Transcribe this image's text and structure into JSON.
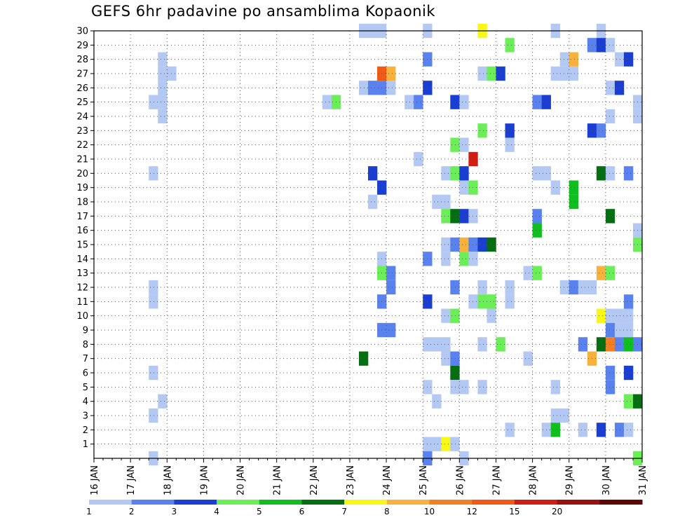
{
  "chart_data": {
    "type": "heatmap",
    "title": "GEFS 6hr padavine po ansamblima Kopaonik",
    "x_tick_labels": [
      "16 JAN",
      "17 JAN",
      "18 JAN",
      "19 JAN",
      "20 JAN",
      "21 JAN",
      "22 JAN",
      "23 JAN",
      "24 JAN",
      "25 JAN",
      "26 JAN",
      "27 JAN",
      "28 JAN",
      "29 JAN",
      "30 JAN",
      "31 JAN"
    ],
    "x_range_days": [
      16,
      31
    ],
    "y_tick_labels": [
      "1",
      "2",
      "3",
      "4",
      "5",
      "6",
      "7",
      "8",
      "9",
      "10",
      "11",
      "12",
      "13",
      "14",
      "15",
      "16",
      "17",
      "18",
      "19",
      "20",
      "21",
      "22",
      "23",
      "24",
      "25",
      "26",
      "27",
      "28",
      "29",
      "30"
    ],
    "y_range": [
      0,
      30
    ],
    "grid": true,
    "legend_placement": "bottom",
    "legend": {
      "labels": [
        "1",
        "2",
        "3",
        "4",
        "5",
        "6",
        "7",
        "8",
        "10",
        "12",
        "15",
        "20"
      ],
      "colors": [
        "#b4c8f4",
        "#5a82ee",
        "#1a3ed2",
        "#6cee58",
        "#10be20",
        "#066e12",
        "#f8f814",
        "#f8b23c",
        "#f08022",
        "#f05a14",
        "#d21e12",
        "#9a1010",
        "#5e0606"
      ]
    },
    "cells_note": "each cell: [day-of-January at start of 6h slot, ensemble member, precipitation class 1-13]",
    "cells": [
      [
        23.25,
        30,
        1
      ],
      [
        23.5,
        30,
        1
      ],
      [
        23.75,
        30,
        1
      ],
      [
        25.0,
        30,
        1
      ],
      [
        26.5,
        30,
        7
      ],
      [
        28.5,
        30,
        1
      ],
      [
        29.75,
        30,
        1
      ],
      [
        27.25,
        29,
        4
      ],
      [
        29.5,
        29,
        2
      ],
      [
        29.75,
        29,
        3
      ],
      [
        30.0,
        29,
        1
      ],
      [
        17.75,
        28,
        1
      ],
      [
        25.0,
        28,
        2
      ],
      [
        28.75,
        28,
        1
      ],
      [
        29.0,
        28,
        8
      ],
      [
        30.25,
        28,
        1
      ],
      [
        30.5,
        28,
        3
      ],
      [
        17.75,
        27,
        1
      ],
      [
        18.0,
        27,
        1
      ],
      [
        23.75,
        27,
        10
      ],
      [
        24.0,
        27,
        8
      ],
      [
        26.5,
        27,
        1
      ],
      [
        26.75,
        27,
        4
      ],
      [
        27.0,
        27,
        3
      ],
      [
        28.5,
        27,
        1
      ],
      [
        28.75,
        27,
        1
      ],
      [
        29.0,
        27,
        1
      ],
      [
        17.75,
        26,
        1
      ],
      [
        23.25,
        26,
        1
      ],
      [
        23.5,
        26,
        2
      ],
      [
        23.75,
        26,
        2
      ],
      [
        24.0,
        26,
        1
      ],
      [
        25.0,
        26,
        3
      ],
      [
        30.0,
        26,
        1
      ],
      [
        30.25,
        26,
        3
      ],
      [
        17.5,
        25,
        1
      ],
      [
        17.75,
        25,
        1
      ],
      [
        22.25,
        25,
        1
      ],
      [
        22.5,
        25,
        4
      ],
      [
        24.5,
        25,
        1
      ],
      [
        24.75,
        25,
        2
      ],
      [
        25.75,
        25,
        3
      ],
      [
        26.0,
        25,
        1
      ],
      [
        28.0,
        25,
        2
      ],
      [
        28.25,
        25,
        3
      ],
      [
        30.75,
        25,
        1
      ],
      [
        17.75,
        24,
        1
      ],
      [
        30.0,
        24,
        1
      ],
      [
        30.75,
        24,
        1
      ],
      [
        26.5,
        23,
        4
      ],
      [
        27.25,
        23,
        3
      ],
      [
        29.5,
        23,
        3
      ],
      [
        29.75,
        23,
        2
      ],
      [
        25.75,
        22,
        4
      ],
      [
        26.0,
        22,
        1
      ],
      [
        27.25,
        22,
        1
      ],
      [
        24.75,
        21,
        1
      ],
      [
        26.25,
        21,
        11
      ],
      [
        17.5,
        20,
        1
      ],
      [
        23.5,
        20,
        3
      ],
      [
        25.5,
        20,
        1
      ],
      [
        25.75,
        20,
        4
      ],
      [
        26.0,
        20,
        3
      ],
      [
        28.0,
        20,
        1
      ],
      [
        28.25,
        20,
        1
      ],
      [
        29.75,
        20,
        6
      ],
      [
        30.0,
        20,
        1
      ],
      [
        30.5,
        20,
        2
      ],
      [
        23.75,
        19,
        3
      ],
      [
        26.0,
        19,
        1
      ],
      [
        26.25,
        19,
        4
      ],
      [
        28.5,
        19,
        1
      ],
      [
        29.0,
        19,
        5
      ],
      [
        23.5,
        18,
        1
      ],
      [
        25.25,
        18,
        1
      ],
      [
        25.5,
        18,
        1
      ],
      [
        29.0,
        18,
        5
      ],
      [
        25.5,
        17,
        4
      ],
      [
        25.75,
        17,
        6
      ],
      [
        26.0,
        17,
        3
      ],
      [
        26.25,
        17,
        1
      ],
      [
        28.0,
        17,
        2
      ],
      [
        30.0,
        17,
        6
      ],
      [
        28.0,
        16,
        5
      ],
      [
        30.75,
        16,
        1
      ],
      [
        25.5,
        15,
        1
      ],
      [
        25.75,
        15,
        2
      ],
      [
        26.0,
        15,
        8
      ],
      [
        26.25,
        15,
        2
      ],
      [
        26.5,
        15,
        3
      ],
      [
        26.75,
        15,
        6
      ],
      [
        30.75,
        15,
        4
      ],
      [
        23.75,
        14,
        1
      ],
      [
        25.0,
        14,
        2
      ],
      [
        25.5,
        14,
        1
      ],
      [
        26.0,
        14,
        4
      ],
      [
        26.25,
        14,
        1
      ],
      [
        23.75,
        13,
        4
      ],
      [
        24.0,
        13,
        2
      ],
      [
        27.75,
        13,
        1
      ],
      [
        28.0,
        13,
        4
      ],
      [
        29.75,
        13,
        8
      ],
      [
        30.0,
        13,
        4
      ],
      [
        17.5,
        12,
        1
      ],
      [
        24.0,
        12,
        2
      ],
      [
        25.75,
        12,
        2
      ],
      [
        26.5,
        12,
        1
      ],
      [
        27.25,
        12,
        1
      ],
      [
        28.75,
        12,
        1
      ],
      [
        29.0,
        12,
        2
      ],
      [
        29.25,
        12,
        1
      ],
      [
        29.5,
        12,
        1
      ],
      [
        17.5,
        11,
        1
      ],
      [
        23.75,
        11,
        2
      ],
      [
        25.0,
        11,
        3
      ],
      [
        26.25,
        11,
        1
      ],
      [
        26.5,
        11,
        4
      ],
      [
        26.75,
        11,
        4
      ],
      [
        27.25,
        11,
        1
      ],
      [
        30.5,
        11,
        2
      ],
      [
        25.5,
        10,
        1
      ],
      [
        25.75,
        10,
        4
      ],
      [
        26.75,
        10,
        1
      ],
      [
        29.75,
        10,
        7
      ],
      [
        30.0,
        10,
        1
      ],
      [
        30.25,
        10,
        1
      ],
      [
        30.5,
        10,
        1
      ],
      [
        23.75,
        9,
        2
      ],
      [
        24.0,
        9,
        2
      ],
      [
        30.0,
        9,
        2
      ],
      [
        30.25,
        9,
        1
      ],
      [
        30.5,
        9,
        1
      ],
      [
        25.0,
        8,
        1
      ],
      [
        25.25,
        8,
        1
      ],
      [
        25.5,
        8,
        1
      ],
      [
        26.5,
        8,
        1
      ],
      [
        27.0,
        8,
        4
      ],
      [
        29.25,
        8,
        2
      ],
      [
        29.75,
        8,
        6
      ],
      [
        30.0,
        8,
        9
      ],
      [
        30.25,
        8,
        2
      ],
      [
        30.5,
        8,
        5
      ],
      [
        30.75,
        8,
        2
      ],
      [
        23.25,
        7,
        6
      ],
      [
        25.5,
        7,
        1
      ],
      [
        25.75,
        7,
        2
      ],
      [
        27.75,
        7,
        1
      ],
      [
        29.5,
        7,
        8
      ],
      [
        17.5,
        6,
        1
      ],
      [
        25.75,
        6,
        6
      ],
      [
        30.0,
        6,
        2
      ],
      [
        30.5,
        6,
        3
      ],
      [
        25.0,
        5,
        1
      ],
      [
        25.75,
        5,
        1
      ],
      [
        26.0,
        5,
        1
      ],
      [
        26.5,
        5,
        1
      ],
      [
        28.5,
        5,
        1
      ],
      [
        30.0,
        5,
        2
      ],
      [
        17.75,
        4,
        1
      ],
      [
        25.25,
        4,
        1
      ],
      [
        30.5,
        4,
        4
      ],
      [
        30.75,
        4,
        6
      ],
      [
        17.5,
        3,
        1
      ],
      [
        28.5,
        3,
        1
      ],
      [
        28.75,
        3,
        1
      ],
      [
        27.25,
        2,
        1
      ],
      [
        28.25,
        2,
        1
      ],
      [
        28.5,
        2,
        5
      ],
      [
        29.25,
        2,
        1
      ],
      [
        29.75,
        2,
        3
      ],
      [
        30.25,
        2,
        2
      ],
      [
        30.5,
        2,
        1
      ],
      [
        25.0,
        1,
        1
      ],
      [
        25.25,
        1,
        1
      ],
      [
        25.5,
        1,
        7
      ],
      [
        25.75,
        1,
        1
      ],
      [
        17.5,
        0,
        1
      ],
      [
        25.0,
        0,
        2
      ],
      [
        26.0,
        0,
        1
      ],
      [
        30.75,
        0,
        4
      ]
    ]
  }
}
